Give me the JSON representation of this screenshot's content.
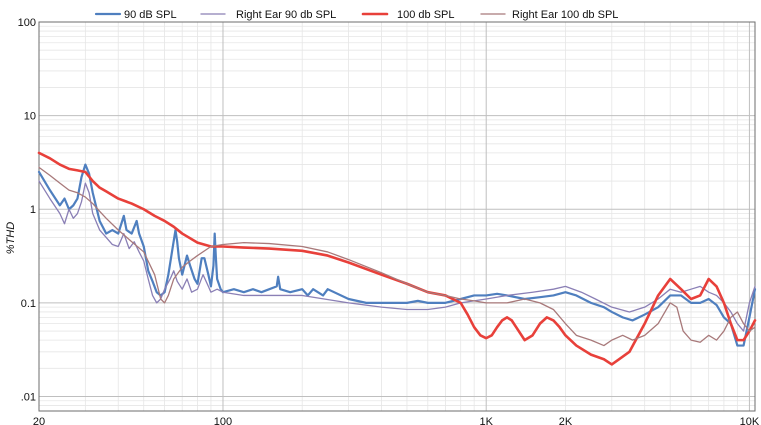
{
  "chart_data": {
    "type": "line",
    "title": "",
    "xlabel": "",
    "ylabel": "%THD",
    "xscale": "log",
    "yscale": "log",
    "xlim": [
      20,
      10500
    ],
    "ylim": [
      0.007,
      100
    ],
    "grid": true,
    "legend_position": "top",
    "x_ticks": [
      {
        "value": 20,
        "label": "20"
      },
      {
        "value": 100,
        "label": "100"
      },
      {
        "value": 1000,
        "label": "1K"
      },
      {
        "value": 2000,
        "label": "2K"
      },
      {
        "value": 10000,
        "label": "10K"
      }
    ],
    "y_ticks": [
      {
        "value": 100,
        "label": "100"
      },
      {
        "value": 10,
        "label": "10"
      },
      {
        "value": 1,
        "label": "1"
      },
      {
        "value": 0.1,
        "label": "0.1"
      },
      {
        "value": 0.01,
        "label": ".01"
      }
    ],
    "series": [
      {
        "name": "90 dB SPL",
        "color": "#4f7fbf",
        "width": 2.2,
        "points": [
          [
            20,
            2.5
          ],
          [
            22,
            1.6
          ],
          [
            24,
            1.1
          ],
          [
            25,
            1.3
          ],
          [
            26,
            1.0
          ],
          [
            27,
            1.1
          ],
          [
            28,
            1.3
          ],
          [
            29,
            2.2
          ],
          [
            30,
            3.0
          ],
          [
            31,
            2.4
          ],
          [
            32,
            1.5
          ],
          [
            34,
            0.75
          ],
          [
            36,
            0.55
          ],
          [
            38,
            0.6
          ],
          [
            40,
            0.55
          ],
          [
            42,
            0.85
          ],
          [
            43,
            0.6
          ],
          [
            45,
            0.55
          ],
          [
            47,
            0.75
          ],
          [
            48,
            0.55
          ],
          [
            50,
            0.4
          ],
          [
            52,
            0.22
          ],
          [
            54,
            0.17
          ],
          [
            56,
            0.13
          ],
          [
            58,
            0.12
          ],
          [
            60,
            0.13
          ],
          [
            62,
            0.2
          ],
          [
            64,
            0.35
          ],
          [
            66,
            0.6
          ],
          [
            67,
            0.45
          ],
          [
            68,
            0.3
          ],
          [
            70,
            0.2
          ],
          [
            73,
            0.32
          ],
          [
            75,
            0.25
          ],
          [
            78,
            0.18
          ],
          [
            80,
            0.16
          ],
          [
            83,
            0.3
          ],
          [
            85,
            0.3
          ],
          [
            88,
            0.2
          ],
          [
            90,
            0.15
          ],
          [
            92,
            0.25
          ],
          [
            93,
            0.55
          ],
          [
            94,
            0.3
          ],
          [
            95,
            0.18
          ],
          [
            98,
            0.14
          ],
          [
            100,
            0.13
          ],
          [
            110,
            0.14
          ],
          [
            120,
            0.13
          ],
          [
            130,
            0.14
          ],
          [
            140,
            0.13
          ],
          [
            150,
            0.14
          ],
          [
            160,
            0.15
          ],
          [
            162,
            0.19
          ],
          [
            165,
            0.14
          ],
          [
            180,
            0.13
          ],
          [
            200,
            0.14
          ],
          [
            210,
            0.12
          ],
          [
            220,
            0.14
          ],
          [
            240,
            0.12
          ],
          [
            250,
            0.14
          ],
          [
            300,
            0.11
          ],
          [
            350,
            0.1
          ],
          [
            400,
            0.1
          ],
          [
            450,
            0.1
          ],
          [
            500,
            0.1
          ],
          [
            550,
            0.105
          ],
          [
            600,
            0.1
          ],
          [
            700,
            0.1
          ],
          [
            800,
            0.11
          ],
          [
            900,
            0.12
          ],
          [
            1000,
            0.12
          ],
          [
            1100,
            0.125
          ],
          [
            1200,
            0.12
          ],
          [
            1400,
            0.11
          ],
          [
            1600,
            0.115
          ],
          [
            1800,
            0.12
          ],
          [
            2000,
            0.13
          ],
          [
            2200,
            0.12
          ],
          [
            2500,
            0.1
          ],
          [
            2800,
            0.09
          ],
          [
            3000,
            0.08
          ],
          [
            3300,
            0.07
          ],
          [
            3600,
            0.065
          ],
          [
            4000,
            0.075
          ],
          [
            4500,
            0.09
          ],
          [
            5000,
            0.12
          ],
          [
            5500,
            0.12
          ],
          [
            6000,
            0.1
          ],
          [
            6500,
            0.1
          ],
          [
            7000,
            0.11
          ],
          [
            7500,
            0.095
          ],
          [
            8000,
            0.07
          ],
          [
            8500,
            0.06
          ],
          [
            9000,
            0.035
          ],
          [
            9500,
            0.035
          ],
          [
            10000,
            0.07
          ],
          [
            10500,
            0.14
          ]
        ]
      },
      {
        "name": "Right Ear 90 db SPL",
        "color": "#8a7fb5",
        "width": 1.3,
        "points": [
          [
            20,
            2.0
          ],
          [
            22,
            1.3
          ],
          [
            24,
            0.9
          ],
          [
            25,
            0.7
          ],
          [
            26,
            1.0
          ],
          [
            27,
            0.8
          ],
          [
            28,
            0.9
          ],
          [
            29,
            1.2
          ],
          [
            30,
            1.9
          ],
          [
            31,
            1.5
          ],
          [
            32,
            0.9
          ],
          [
            34,
            0.6
          ],
          [
            36,
            0.5
          ],
          [
            38,
            0.42
          ],
          [
            40,
            0.4
          ],
          [
            42,
            0.55
          ],
          [
            44,
            0.38
          ],
          [
            46,
            0.45
          ],
          [
            48,
            0.35
          ],
          [
            50,
            0.28
          ],
          [
            52,
            0.18
          ],
          [
            54,
            0.12
          ],
          [
            56,
            0.1
          ],
          [
            58,
            0.11
          ],
          [
            60,
            0.14
          ],
          [
            63,
            0.18
          ],
          [
            65,
            0.22
          ],
          [
            67,
            0.17
          ],
          [
            70,
            0.14
          ],
          [
            73,
            0.18
          ],
          [
            76,
            0.13
          ],
          [
            80,
            0.14
          ],
          [
            84,
            0.2
          ],
          [
            88,
            0.15
          ],
          [
            90,
            0.13
          ],
          [
            95,
            0.14
          ],
          [
            100,
            0.13
          ],
          [
            120,
            0.12
          ],
          [
            150,
            0.12
          ],
          [
            200,
            0.12
          ],
          [
            300,
            0.1
          ],
          [
            400,
            0.09
          ],
          [
            500,
            0.085
          ],
          [
            600,
            0.085
          ],
          [
            700,
            0.09
          ],
          [
            800,
            0.1
          ],
          [
            1000,
            0.11
          ],
          [
            1200,
            0.12
          ],
          [
            1500,
            0.13
          ],
          [
            1800,
            0.14
          ],
          [
            2000,
            0.15
          ],
          [
            2300,
            0.13
          ],
          [
            2600,
            0.11
          ],
          [
            3000,
            0.09
          ],
          [
            3500,
            0.08
          ],
          [
            4000,
            0.09
          ],
          [
            4500,
            0.11
          ],
          [
            5000,
            0.14
          ],
          [
            5500,
            0.13
          ],
          [
            6000,
            0.14
          ],
          [
            6500,
            0.15
          ],
          [
            7000,
            0.13
          ],
          [
            7500,
            0.12
          ],
          [
            8000,
            0.1
          ],
          [
            8500,
            0.08
          ],
          [
            9000,
            0.06
          ],
          [
            9500,
            0.05
          ],
          [
            10000,
            0.1
          ],
          [
            10500,
            0.15
          ]
        ]
      },
      {
        "name": "100 db SPL",
        "color": "#e8403a",
        "width": 2.6,
        "points": [
          [
            20,
            4.0
          ],
          [
            22,
            3.5
          ],
          [
            24,
            3.0
          ],
          [
            26,
            2.7
          ],
          [
            28,
            2.6
          ],
          [
            30,
            2.5
          ],
          [
            32,
            2.0
          ],
          [
            34,
            1.7
          ],
          [
            36,
            1.55
          ],
          [
            40,
            1.3
          ],
          [
            45,
            1.15
          ],
          [
            50,
            1.0
          ],
          [
            55,
            0.85
          ],
          [
            60,
            0.75
          ],
          [
            65,
            0.65
          ],
          [
            70,
            0.55
          ],
          [
            80,
            0.44
          ],
          [
            90,
            0.4
          ],
          [
            100,
            0.4
          ],
          [
            120,
            0.39
          ],
          [
            150,
            0.38
          ],
          [
            200,
            0.36
          ],
          [
            250,
            0.32
          ],
          [
            300,
            0.27
          ],
          [
            400,
            0.2
          ],
          [
            500,
            0.16
          ],
          [
            600,
            0.13
          ],
          [
            700,
            0.12
          ],
          [
            800,
            0.1
          ],
          [
            850,
            0.075
          ],
          [
            900,
            0.055
          ],
          [
            950,
            0.045
          ],
          [
            1000,
            0.042
          ],
          [
            1050,
            0.045
          ],
          [
            1100,
            0.055
          ],
          [
            1150,
            0.065
          ],
          [
            1200,
            0.07
          ],
          [
            1250,
            0.065
          ],
          [
            1300,
            0.055
          ],
          [
            1400,
            0.04
          ],
          [
            1500,
            0.045
          ],
          [
            1600,
            0.06
          ],
          [
            1700,
            0.07
          ],
          [
            1800,
            0.065
          ],
          [
            1900,
            0.055
          ],
          [
            2000,
            0.045
          ],
          [
            2200,
            0.035
          ],
          [
            2500,
            0.028
          ],
          [
            2800,
            0.025
          ],
          [
            3000,
            0.022
          ],
          [
            3200,
            0.025
          ],
          [
            3500,
            0.03
          ],
          [
            4000,
            0.06
          ],
          [
            4500,
            0.12
          ],
          [
            5000,
            0.18
          ],
          [
            5500,
            0.14
          ],
          [
            6000,
            0.11
          ],
          [
            6500,
            0.12
          ],
          [
            7000,
            0.18
          ],
          [
            7500,
            0.15
          ],
          [
            8000,
            0.1
          ],
          [
            8500,
            0.06
          ],
          [
            9000,
            0.04
          ],
          [
            9500,
            0.04
          ],
          [
            10000,
            0.05
          ],
          [
            10500,
            0.065
          ]
        ]
      },
      {
        "name": "Right Ear 100 db SPL",
        "color": "#a8797a",
        "width": 1.3,
        "points": [
          [
            20,
            2.8
          ],
          [
            22,
            2.3
          ],
          [
            24,
            1.9
          ],
          [
            26,
            1.6
          ],
          [
            28,
            1.5
          ],
          [
            30,
            1.35
          ],
          [
            32,
            1.15
          ],
          [
            34,
            0.95
          ],
          [
            36,
            0.8
          ],
          [
            40,
            0.6
          ],
          [
            45,
            0.45
          ],
          [
            50,
            0.35
          ],
          [
            55,
            0.2
          ],
          [
            58,
            0.11
          ],
          [
            60,
            0.1
          ],
          [
            62,
            0.12
          ],
          [
            65,
            0.18
          ],
          [
            70,
            0.24
          ],
          [
            75,
            0.28
          ],
          [
            80,
            0.32
          ],
          [
            90,
            0.4
          ],
          [
            100,
            0.42
          ],
          [
            120,
            0.44
          ],
          [
            150,
            0.43
          ],
          [
            200,
            0.4
          ],
          [
            250,
            0.35
          ],
          [
            300,
            0.29
          ],
          [
            400,
            0.21
          ],
          [
            500,
            0.16
          ],
          [
            600,
            0.13
          ],
          [
            700,
            0.12
          ],
          [
            800,
            0.11
          ],
          [
            900,
            0.105
          ],
          [
            1000,
            0.1
          ],
          [
            1200,
            0.1
          ],
          [
            1400,
            0.11
          ],
          [
            1600,
            0.1
          ],
          [
            1800,
            0.085
          ],
          [
            2000,
            0.06
          ],
          [
            2200,
            0.045
          ],
          [
            2500,
            0.04
          ],
          [
            2800,
            0.035
          ],
          [
            3000,
            0.04
          ],
          [
            3300,
            0.045
          ],
          [
            3600,
            0.04
          ],
          [
            4000,
            0.045
          ],
          [
            4500,
            0.06
          ],
          [
            5000,
            0.1
          ],
          [
            5300,
            0.09
          ],
          [
            5600,
            0.05
          ],
          [
            6000,
            0.04
          ],
          [
            6500,
            0.038
          ],
          [
            7000,
            0.045
          ],
          [
            7500,
            0.04
          ],
          [
            8000,
            0.05
          ],
          [
            8500,
            0.07
          ],
          [
            9000,
            0.08
          ],
          [
            9500,
            0.06
          ],
          [
            10000,
            0.05
          ],
          [
            10500,
            0.055
          ]
        ]
      }
    ]
  }
}
